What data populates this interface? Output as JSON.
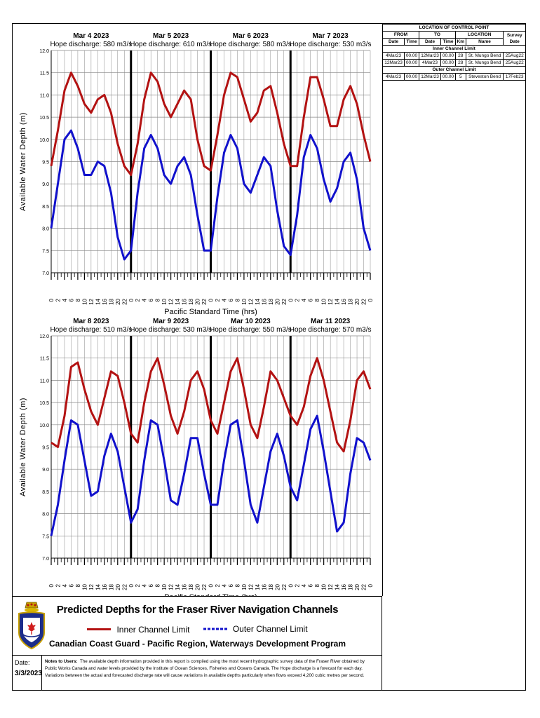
{
  "colors": {
    "inner": "#b31212",
    "outer": "#1111cc",
    "grid": "#888888",
    "daysep": "#000000"
  },
  "chart_data": [
    {
      "type": "line",
      "xlabel": "Pacific Standard Time (hrs)",
      "ylabel": "Available Water Depth (m)",
      "ylim": [
        7.0,
        12.0
      ],
      "yticks": [
        "7.0",
        "7.5",
        "8.0",
        "8.5",
        "9.0",
        "9.5",
        "10.0",
        "10.5",
        "11.0",
        "11.5",
        "12.0"
      ],
      "xtick_labels": [
        "0",
        "2",
        "4",
        "6",
        "8",
        "10",
        "12",
        "14",
        "16",
        "18",
        "20",
        "22",
        "0",
        "2",
        "4",
        "6",
        "8",
        "10",
        "12",
        "14",
        "16",
        "18",
        "20",
        "22",
        "0",
        "2",
        "4",
        "6",
        "8",
        "10",
        "12",
        "14",
        "16",
        "18",
        "20",
        "22",
        "0",
        "2",
        "4",
        "6",
        "8",
        "10",
        "12",
        "14",
        "16",
        "18",
        "20",
        "22",
        "0"
      ],
      "days": [
        {
          "date": "Mar 4 2023",
          "discharge": "Hope discharge: 580 m3/s"
        },
        {
          "date": "Mar 5 2023",
          "discharge": "Hope discharge: 610 m3/s"
        },
        {
          "date": "Mar 6 2023",
          "discharge": "Hope discharge: 580 m3/s"
        },
        {
          "date": "Mar 7 2023",
          "discharge": "Hope discharge: 530 m3/s"
        }
      ],
      "grid": true,
      "x": [
        0,
        2,
        4,
        6,
        8,
        10,
        12,
        14,
        16,
        18,
        20,
        22,
        24,
        26,
        28,
        30,
        32,
        34,
        36,
        38,
        40,
        42,
        44,
        46,
        48,
        50,
        52,
        54,
        56,
        58,
        60,
        62,
        64,
        66,
        68,
        70,
        72,
        74,
        76,
        78,
        80,
        82,
        84,
        86,
        88,
        90,
        92,
        94,
        96
      ],
      "series": [
        {
          "name": "Inner Channel Limit",
          "values": [
            9.4,
            10.2,
            11.1,
            11.5,
            11.2,
            10.8,
            10.6,
            10.9,
            11.0,
            10.6,
            9.9,
            9.4,
            9.2,
            9.9,
            10.9,
            11.5,
            11.3,
            10.8,
            10.5,
            10.8,
            11.1,
            10.9,
            10.0,
            9.4,
            9.3,
            10.1,
            11.0,
            11.5,
            11.4,
            10.9,
            10.4,
            10.6,
            11.1,
            11.2,
            10.6,
            9.9,
            9.4,
            9.4,
            10.5,
            11.4,
            11.4,
            10.9,
            10.3,
            10.3,
            10.9,
            11.2,
            10.8,
            10.1,
            9.5
          ]
        },
        {
          "name": "Outer Channel Limit",
          "values": [
            8.0,
            9.0,
            10.0,
            10.2,
            9.8,
            9.2,
            9.2,
            9.5,
            9.4,
            8.8,
            7.8,
            7.3,
            7.5,
            8.8,
            9.8,
            10.1,
            9.8,
            9.2,
            9.0,
            9.4,
            9.6,
            9.2,
            8.3,
            7.5,
            7.5,
            8.7,
            9.7,
            10.1,
            9.8,
            9.0,
            8.8,
            9.2,
            9.6,
            9.4,
            8.4,
            7.6,
            7.4,
            8.3,
            9.6,
            10.1,
            9.8,
            9.1,
            8.6,
            8.9,
            9.5,
            9.7,
            9.1,
            8.0,
            7.5
          ]
        }
      ]
    },
    {
      "type": "line",
      "xlabel": "Pacific Standard Time (hrs)",
      "ylabel": "Available Water Depth (m)",
      "ylim": [
        7.0,
        12.0
      ],
      "yticks": [
        "7.0",
        "7.5",
        "8.0",
        "8.5",
        "9.0",
        "9.5",
        "10.0",
        "10.5",
        "11.0",
        "11.5",
        "12.0"
      ],
      "xtick_labels": [
        "0",
        "2",
        "4",
        "6",
        "8",
        "10",
        "12",
        "14",
        "16",
        "18",
        "20",
        "22",
        "0",
        "2",
        "4",
        "6",
        "8",
        "10",
        "12",
        "14",
        "16",
        "18",
        "20",
        "22",
        "0",
        "2",
        "4",
        "6",
        "8",
        "10",
        "12",
        "14",
        "16",
        "18",
        "20",
        "22",
        "0",
        "2",
        "4",
        "6",
        "8",
        "10",
        "12",
        "14",
        "16",
        "18",
        "20",
        "22",
        "0"
      ],
      "days": [
        {
          "date": "Mar 8 2023",
          "discharge": "Hope discharge: 510 m3/s"
        },
        {
          "date": "Mar 9 2023",
          "discharge": "Hope discharge: 530 m3/s"
        },
        {
          "date": "Mar 10 2023",
          "discharge": "Hope discharge: 550 m3/s"
        },
        {
          "date": "Mar 11 2023",
          "discharge": "Hope discharge: 570 m3/s"
        }
      ],
      "grid": true,
      "x": [
        0,
        2,
        4,
        6,
        8,
        10,
        12,
        14,
        16,
        18,
        20,
        22,
        24,
        26,
        28,
        30,
        32,
        34,
        36,
        38,
        40,
        42,
        44,
        46,
        48,
        50,
        52,
        54,
        56,
        58,
        60,
        62,
        64,
        66,
        68,
        70,
        72,
        74,
        76,
        78,
        80,
        82,
        84,
        86,
        88,
        90,
        92,
        94,
        96
      ],
      "series": [
        {
          "name": "Inner Channel Limit",
          "values": [
            9.6,
            9.5,
            10.2,
            11.3,
            11.4,
            10.8,
            10.3,
            10.0,
            10.6,
            11.2,
            11.1,
            10.5,
            9.8,
            9.6,
            10.5,
            11.2,
            11.5,
            10.9,
            10.2,
            9.8,
            10.3,
            11.0,
            11.2,
            10.8,
            10.1,
            9.8,
            10.5,
            11.2,
            11.5,
            10.8,
            10.0,
            9.7,
            10.4,
            11.2,
            11.0,
            10.6,
            10.2,
            10.0,
            10.4,
            11.1,
            11.5,
            11.0,
            10.3,
            9.6,
            9.4,
            10.1,
            11.0,
            11.2,
            10.8
          ]
        },
        {
          "name": "Outer Channel Limit",
          "values": [
            7.5,
            8.2,
            9.2,
            10.1,
            10.0,
            9.2,
            8.4,
            8.5,
            9.3,
            9.8,
            9.4,
            8.6,
            7.8,
            8.1,
            9.2,
            10.1,
            10.0,
            9.2,
            8.3,
            8.2,
            8.9,
            9.7,
            9.7,
            8.9,
            8.2,
            8.2,
            9.2,
            10.0,
            10.1,
            9.2,
            8.2,
            7.8,
            8.6,
            9.4,
            9.8,
            9.3,
            8.6,
            8.3,
            9.1,
            9.9,
            10.2,
            9.4,
            8.5,
            7.6,
            7.8,
            8.9,
            9.7,
            9.6,
            9.2
          ]
        }
      ]
    }
  ],
  "title": {
    "main": "Predicted Depths for the Fraser River Navigation Channels",
    "legend_inner": "Inner Channel Limit",
    "legend_outer": "Outer Channel Limit",
    "subtitle": "Canadian Coast Guard - Pacific Region,  Waterways Development Program"
  },
  "date": {
    "label": "Date:",
    "value": "3/3/2023"
  },
  "notes": {
    "label": "Notes to Users:",
    "text": "The available depth information provided in this report is compiled using the most recent hydrographic survey data of the Fraser River obtained by Public Works Canada and water levels provided by the Institute of Ocean Sciences, Fisheries and Oceans Canada.  The Hope discharge is a forecast for each day.  Variations between the actual and forecasted discharge rate will cause variations in available depths particularly when flows exceed 4,200 cubic metres per second."
  },
  "control_table": {
    "title": "LOCATION OF CONTROL POINT",
    "from": "FROM",
    "to": "TO",
    "location": "LOCATION",
    "survey": "Survey",
    "date_col": "Date",
    "time_col": "Time",
    "km_col": "Km",
    "name_col": "Name",
    "survey_date": "Date",
    "inner_header": "Inner Channel Limit",
    "outer_header": "Outer Channel Limit",
    "inner_rows": [
      [
        "4Mar23",
        "00.00",
        "12Mar23",
        "00.00",
        "28",
        "St. Mungo Bend",
        "25Aug22"
      ],
      [
        "12Mar23",
        "00.00",
        "4Mar23",
        "00.00",
        "28",
        "St. Mungo Bend",
        "25Aug22"
      ]
    ],
    "outer_rows": [
      [
        "4Mar23",
        "00.00",
        "12Mar23",
        "00.00",
        "5",
        "Steveston Bend",
        "17Feb23"
      ]
    ]
  }
}
